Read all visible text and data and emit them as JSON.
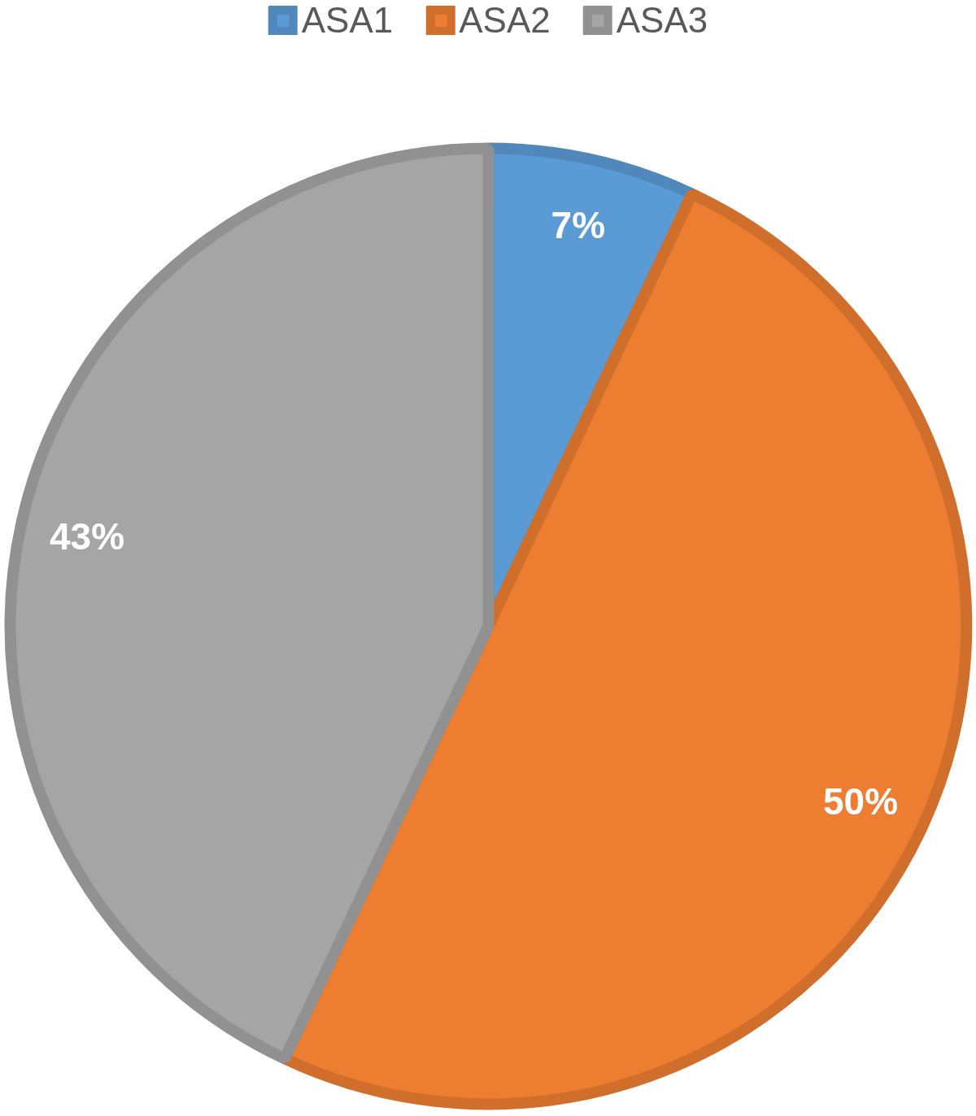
{
  "chart_data": {
    "type": "pie",
    "categories": [
      "ASA1",
      "ASA2",
      "ASA3"
    ],
    "values": [
      7,
      50,
      43
    ],
    "colors": [
      "#5b9bd5",
      "#ed7d31",
      "#a5a5a5"
    ],
    "value_labels": [
      "7%",
      "50%",
      "43%"
    ],
    "legend": "top"
  }
}
